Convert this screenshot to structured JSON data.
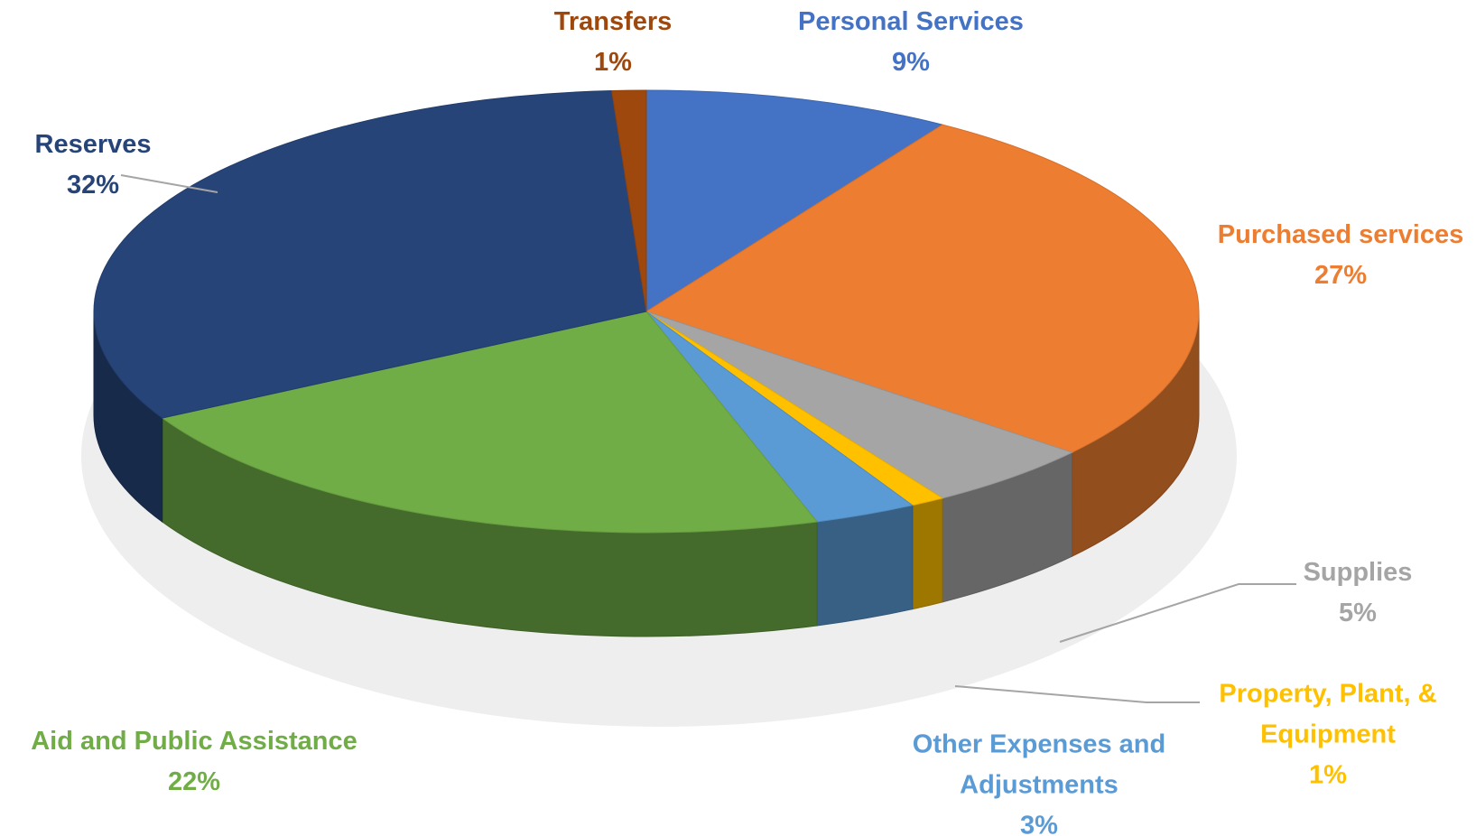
{
  "chart_data": {
    "type": "pie3d",
    "categories": [
      "Personal Services",
      "Purchased services",
      "Supplies",
      "Property, Plant, & Equipment",
      "Other Expenses and Adjustments",
      "Aid and Public Assistance",
      "Reserves",
      "Transfers"
    ],
    "values": [
      9,
      27,
      5,
      1,
      3,
      22,
      32,
      1
    ],
    "value_labels": [
      "9%",
      "27%",
      "5%",
      "1%",
      "3%",
      "22%",
      "32%",
      "1%"
    ],
    "colors": [
      "#4472c4",
      "#ed7d31",
      "#a5a5a5",
      "#ffc000",
      "#5b9bd5",
      "#70ad47",
      "#264478",
      "#9e480e"
    ]
  }
}
